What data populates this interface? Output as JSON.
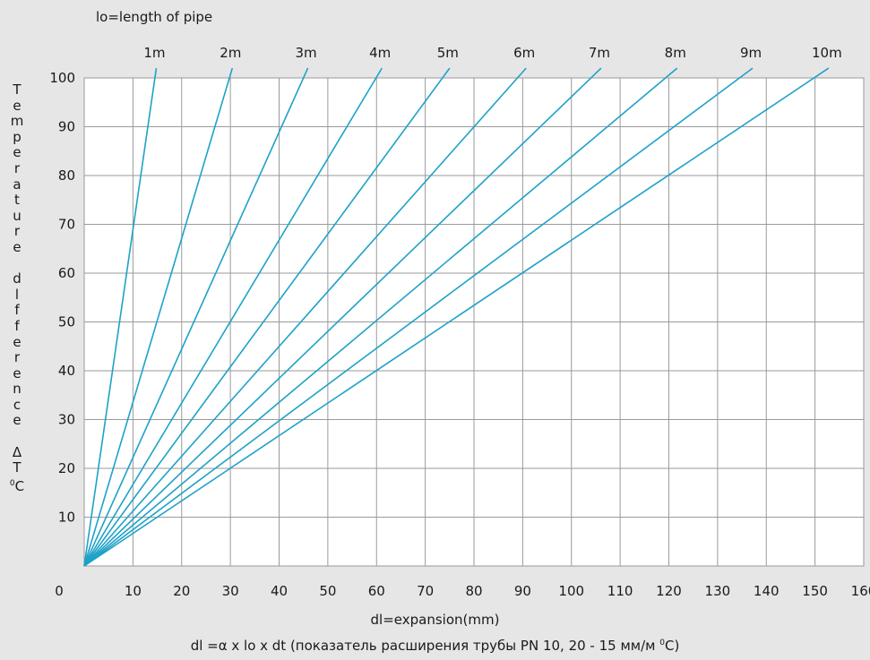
{
  "chart_data": {
    "type": "line",
    "title": "lo=length of pipe",
    "ylabel_letters": [
      "T",
      "e",
      "m",
      "p",
      "e",
      "r",
      "a",
      "t",
      "u",
      "r",
      "e",
      "",
      "d",
      "l",
      "f",
      "f",
      "e",
      "r",
      "e",
      "n",
      "c",
      "e",
      "",
      "Δ",
      "T"
    ],
    "ylabel_unit_sup": "0",
    "ylabel_unit": "C",
    "xlabel": "dl=expansion(mm)",
    "formula": {
      "before": "dl =α x lo x dt (показатель расширения трубы PN 10, 20 - 15 мм/м ",
      "sup": "0",
      "after": "C)"
    },
    "xlim": [
      0,
      160
    ],
    "ylim": [
      0,
      100
    ],
    "x_ticks": [
      "0",
      "10",
      "20",
      "30",
      "40",
      "50",
      "60",
      "70",
      "80",
      "90",
      "100",
      "110",
      "120",
      "130",
      "140",
      "150",
      "160"
    ],
    "y_ticks": [
      "10",
      "20",
      "30",
      "40",
      "50",
      "60",
      "70",
      "80",
      "90",
      "100"
    ],
    "grid": true,
    "line_color": "#1ea2c8",
    "grid_color": "#9a9a9a",
    "series": [
      {
        "name": "1m",
        "x": [
          0,
          14.8
        ],
        "y": [
          0,
          102
        ]
      },
      {
        "name": "2m",
        "x": [
          0,
          30.4
        ],
        "y": [
          0,
          102
        ]
      },
      {
        "name": "3m",
        "x": [
          0,
          45.9
        ],
        "y": [
          0,
          102
        ]
      },
      {
        "name": "4m",
        "x": [
          0,
          61.1
        ],
        "y": [
          0,
          102
        ]
      },
      {
        "name": "5m",
        "x": [
          0,
          75.0
        ],
        "y": [
          0,
          102
        ]
      },
      {
        "name": "6m",
        "x": [
          0,
          90.7
        ],
        "y": [
          0,
          102
        ]
      },
      {
        "name": "7m",
        "x": [
          0,
          106.1
        ],
        "y": [
          0,
          102
        ]
      },
      {
        "name": "8m",
        "x": [
          0,
          121.7
        ],
        "y": [
          0,
          102
        ]
      },
      {
        "name": "9m",
        "x": [
          0,
          137.2
        ],
        "y": [
          0,
          102
        ]
      },
      {
        "name": "10m",
        "x": [
          0,
          152.8
        ],
        "y": [
          0,
          102
        ]
      }
    ]
  }
}
